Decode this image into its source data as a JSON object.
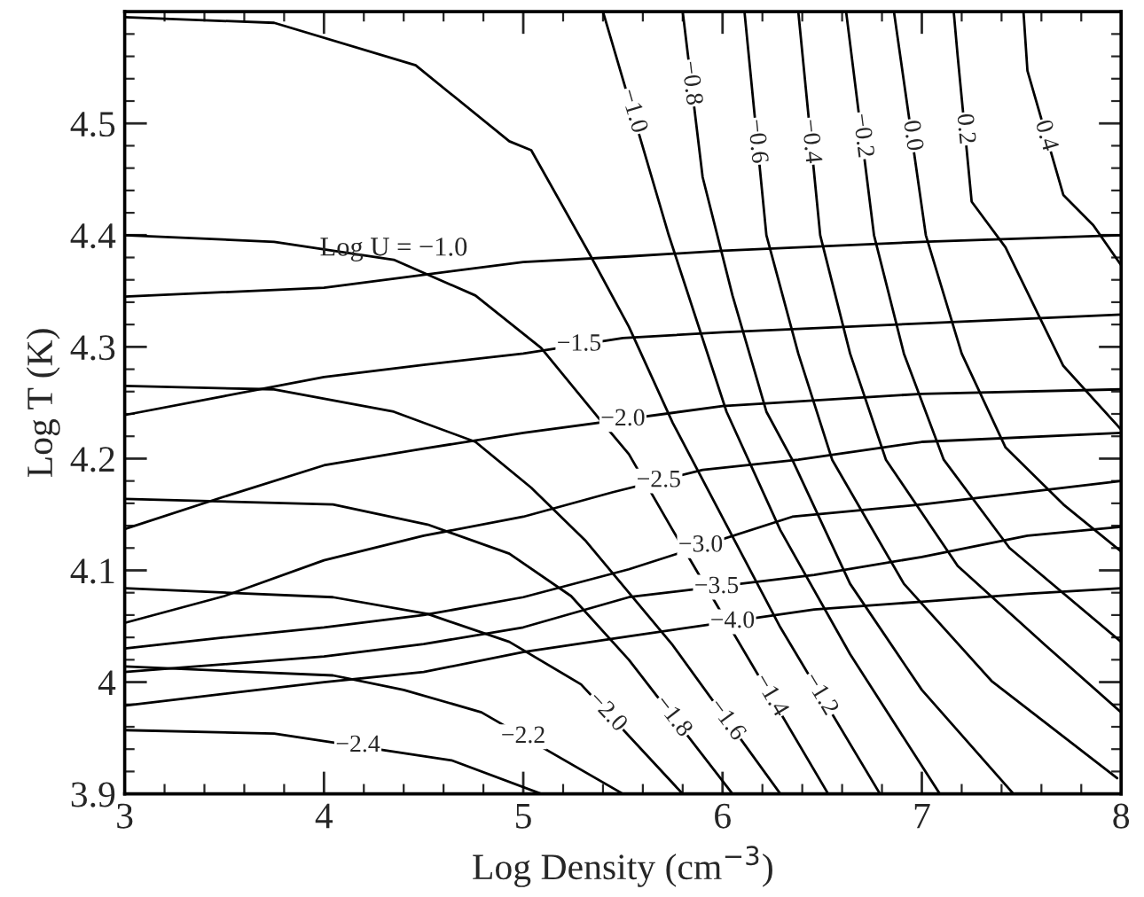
{
  "chart_data": {
    "type": "line",
    "xlabel": "Log Density (cm$^{−3}$)",
    "ylabel": "Log T (K)",
    "xlim": [
      3,
      8
    ],
    "ylim": [
      3.9,
      4.6
    ],
    "xticks": [
      3,
      4,
      5,
      6,
      7,
      8
    ],
    "yticks": [
      3.9,
      4,
      4.1,
      4.2,
      4.3,
      4.4,
      4.5
    ],
    "line_style": "solid",
    "series": [
      {
        "name": "Log U = −1.0",
        "color": "#000000",
        "x": [
          3,
          4,
          5,
          5.53,
          6,
          7,
          8
        ],
        "values": [
          4.345,
          4.353,
          4.376,
          4.381,
          4.386,
          4.394,
          4.4
        ]
      },
      {
        "color": "#000000",
        "x": [
          3,
          3.5,
          4,
          4.5,
          5,
          5.5,
          6,
          7,
          8
        ],
        "values": [
          4.239,
          4.256,
          4.273,
          4.284,
          4.294,
          4.308,
          4.313,
          4.321,
          4.329
        ]
      },
      {
        "color": "#000000",
        "x": [
          3,
          3.5,
          4,
          4.5,
          5,
          6,
          7,
          8
        ],
        "values": [
          4.137,
          4.166,
          4.194,
          4.209,
          4.223,
          4.247,
          4.258,
          4.262
        ]
      },
      {
        "color": "#000000",
        "x": [
          3,
          3.5,
          4,
          4.5,
          5,
          5.45,
          5.9,
          6.38,
          7,
          8
        ],
        "values": [
          4.053,
          4.077,
          4.109,
          4.131,
          4.148,
          4.17,
          4.19,
          4.199,
          4.215,
          4.223
        ]
      },
      {
        "color": "#000000",
        "x": [
          3,
          3.5,
          4,
          4.5,
          5,
          5.53,
          6.35,
          7,
          7.53,
          8
        ],
        "values": [
          4.03,
          4.04,
          4.049,
          4.06,
          4.076,
          4.101,
          4.148,
          4.159,
          4.17,
          4.18
        ]
      },
      {
        "color": "#000000",
        "x": [
          3,
          4,
          4.5,
          5,
          5.53,
          6.46,
          7,
          7.53,
          8
        ],
        "values": [
          4.009,
          4.023,
          4.034,
          4.049,
          4.076,
          4.096,
          4.112,
          4.131,
          4.139
        ]
      },
      {
        "color": "#000000",
        "x": [
          3,
          4,
          4.5,
          5,
          5.53,
          6.46,
          7,
          7.53,
          8
        ],
        "values": [
          3.979,
          4.0,
          4.009,
          4.027,
          4.041,
          4.065,
          4.072,
          4.079,
          4.084
        ]
      },
      {
        "color": "#000000",
        "x": [
          3,
          3.75,
          4.46,
          4.93,
          5.04,
          5.33,
          5.53,
          5.75,
          6.29,
          6.79
        ],
        "values": [
          4.595,
          4.59,
          4.552,
          4.484,
          4.476,
          4.384,
          4.318,
          4.232,
          4.049,
          3.9
        ]
      },
      {
        "color": "#000000",
        "x": [
          3,
          3.75,
          4.35,
          4.76,
          5.09,
          5.38,
          5.53,
          5.75,
          6.53
        ],
        "values": [
          4.4,
          4.394,
          4.378,
          4.346,
          4.299,
          4.236,
          4.204,
          4.136,
          3.9
        ]
      },
      {
        "color": "#000000",
        "x": [
          3,
          3.75,
          4.35,
          4.76,
          5.04,
          5.31,
          5.53,
          5.75,
          6.29
        ],
        "values": [
          4.265,
          4.262,
          4.242,
          4.215,
          4.174,
          4.127,
          4.08,
          4.033,
          3.9
        ]
      },
      {
        "color": "#000000",
        "x": [
          3,
          4.045,
          4.52,
          4.93,
          5.24,
          5.53,
          6.05
        ],
        "values": [
          4.164,
          4.159,
          4.141,
          4.115,
          4.077,
          4.02,
          3.9
        ]
      },
      {
        "color": "#000000",
        "x": [
          3,
          4.045,
          4.52,
          4.93,
          5.29,
          5.8
        ],
        "values": [
          4.084,
          4.076,
          4.061,
          4.036,
          3.998,
          3.9
        ]
      },
      {
        "color": "#000000",
        "x": [
          3,
          4.045,
          4.4,
          4.79,
          5.5
        ],
        "values": [
          4.014,
          4.006,
          3.993,
          3.973,
          3.9
        ]
      },
      {
        "color": "#000000",
        "x": [
          3,
          3.75,
          4.64,
          5.09
        ],
        "values": [
          3.957,
          3.954,
          3.93,
          3.9
        ]
      },
      {
        "color": "#000000",
        "x": [
          5.4,
          5.73,
          6.02,
          6.29,
          6.64,
          7.09
        ],
        "values": [
          4.6,
          4.4,
          4.242,
          4.136,
          4.025,
          3.9
        ]
      },
      {
        "color": "#000000",
        "x": [
          5.8,
          5.9,
          6.05,
          6.22,
          6.35,
          6.64,
          7.0,
          7.46
        ],
        "values": [
          4.6,
          4.452,
          4.346,
          4.242,
          4.199,
          4.088,
          3.993,
          3.9
        ]
      },
      {
        "color": "#000000",
        "x": [
          6.11,
          6.22,
          6.38,
          6.55,
          6.91,
          7.35,
          7.98
        ],
        "values": [
          4.6,
          4.4,
          4.294,
          4.199,
          4.088,
          4.001,
          3.914
        ]
      },
      {
        "color": "#000000",
        "x": [
          6.38,
          6.49,
          6.64,
          6.82,
          7.18,
          7.62,
          8
        ],
        "values": [
          4.6,
          4.4,
          4.294,
          4.199,
          4.104,
          4.033,
          3.973
        ]
      },
      {
        "color": "#000000",
        "x": [
          6.62,
          6.76,
          6.91,
          7.11,
          7.44,
          8
        ],
        "values": [
          4.6,
          4.4,
          4.294,
          4.199,
          4.12,
          4.036
        ]
      },
      {
        "color": "#000000",
        "x": [
          6.86,
          7.02,
          7.2,
          7.42,
          7.71,
          8
        ],
        "values": [
          4.6,
          4.4,
          4.294,
          4.21,
          4.159,
          4.117
        ]
      },
      {
        "color": "#000000",
        "x": [
          7.16,
          7.18,
          7.25,
          7.42,
          7.71,
          8
        ],
        "values": [
          4.6,
          4.56,
          4.43,
          4.389,
          4.283,
          4.226
        ]
      },
      {
        "color": "#000000",
        "x": [
          7.51,
          7.53,
          7.71,
          7.86,
          8
        ],
        "values": [
          4.6,
          4.547,
          4.436,
          4.409,
          4.373
        ]
      }
    ],
    "annotations": [
      {
        "text": "−1.5",
        "x": 5.28,
        "y": 4.302
      },
      {
        "text": "−2.0",
        "x": 5.5,
        "y": 4.235
      },
      {
        "text": "−2.5",
        "x": 5.68,
        "y": 4.18
      },
      {
        "text": "−3.0",
        "x": 5.89,
        "y": 4.122
      },
      {
        "text": "−3.5",
        "x": 5.97,
        "y": 4.085
      },
      {
        "text": "−4.0",
        "x": 6.05,
        "y": 4.054
      },
      {
        "text": "−1.0",
        "x": 5.55,
        "y": 4.511
      },
      {
        "text": "−0.8",
        "x": 5.84,
        "y": 4.536
      },
      {
        "text": "−0.6",
        "x": 6.17,
        "y": 4.484
      },
      {
        "text": "−0.4",
        "x": 6.44,
        "y": 4.484
      },
      {
        "text": "−0.2",
        "x": 6.7,
        "y": 4.489
      },
      {
        "text": "0.0",
        "x": 6.95,
        "y": 4.489
      },
      {
        "text": "0.2",
        "x": 7.215,
        "y": 4.495
      },
      {
        "text": "0.4",
        "x": 7.62,
        "y": 4.489
      },
      {
        "text": "−2.4",
        "x": 4.17,
        "y": 3.943
      },
      {
        "text": "−2.2",
        "x": 5.0,
        "y": 3.951
      },
      {
        "text": "−2.0",
        "x": 5.42,
        "y": 3.973
      },
      {
        "text": "−1.8",
        "x": 5.75,
        "y": 3.969
      },
      {
        "text": "−1.6",
        "x": 6.02,
        "y": 3.966
      },
      {
        "text": "−1.4",
        "x": 6.24,
        "y": 3.988
      },
      {
        "text": "−1.2",
        "x": 6.49,
        "y": 3.989
      }
    ]
  }
}
